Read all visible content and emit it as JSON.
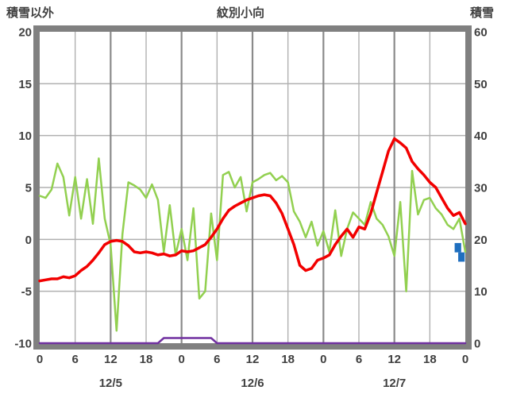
{
  "header": {
    "left_axis_title": "積雪以外",
    "title": "紋別小向",
    "right_axis_title": "積雪"
  },
  "chart_data": {
    "type": "line",
    "title": "紋別小向",
    "left_axis": {
      "label": "積雪以外",
      "min": -10,
      "max": 20,
      "tick_step": 5,
      "ticks": [
        20,
        15,
        10,
        5,
        0,
        -5,
        -10
      ]
    },
    "right_axis": {
      "label": "積雪",
      "min": 0,
      "max": 60,
      "tick_step": 10,
      "ticks": [
        60,
        50,
        40,
        30,
        20,
        10,
        0
      ]
    },
    "x_axis": {
      "hours_span": 72,
      "tick_step": 6,
      "hour_labels": [
        "0",
        "6",
        "12",
        "18",
        "0",
        "6",
        "12",
        "18",
        "0",
        "6",
        "12",
        "18",
        "0"
      ],
      "date_labels": [
        {
          "label": "12/5",
          "hour": 12
        },
        {
          "label": "12/6",
          "hour": 36
        },
        {
          "label": "12/7",
          "hour": 60
        }
      ]
    },
    "colors": {
      "frame": "#808080",
      "grid_minor": "#b0b0b0",
      "grid_major": "#8a8a8a",
      "text": "#404040",
      "plot_bg": "#ffffff"
    },
    "series": [
      {
        "name": "green-line",
        "color": "#92d050",
        "width": 2.5,
        "axis": "left",
        "values": [
          4.2,
          4.0,
          4.8,
          7.3,
          6.0,
          2.3,
          6.0,
          2.0,
          5.8,
          1.5,
          7.8,
          2.0,
          -0.5,
          -8.8,
          0.5,
          5.5,
          5.2,
          4.8,
          4.0,
          5.3,
          3.8,
          -1.2,
          3.3,
          -1.5,
          1.0,
          -2.0,
          3.0,
          -5.7,
          -5.0,
          2.5,
          -2.0,
          6.2,
          6.5,
          5.0,
          6.0,
          2.7,
          5.5,
          5.8,
          6.2,
          6.4,
          5.7,
          6.1,
          5.5,
          2.7,
          1.7,
          0.2,
          1.7,
          -0.6,
          0.8,
          -1.2,
          2.8,
          -1.6,
          1.0,
          2.6,
          2.0,
          1.4,
          3.6,
          2.0,
          1.4,
          0.3,
          -1.6,
          3.6,
          -5.0,
          6.6,
          2.4,
          3.8,
          4.0,
          3.0,
          2.4,
          1.4,
          1.0,
          2.0,
          -1.2
        ]
      },
      {
        "name": "red-line",
        "color": "#f20000",
        "width": 3.5,
        "axis": "left",
        "values": [
          -4.0,
          -3.9,
          -3.8,
          -3.8,
          -3.6,
          -3.7,
          -3.5,
          -3.0,
          -2.6,
          -2.0,
          -1.3,
          -0.5,
          -0.2,
          -0.1,
          -0.2,
          -0.6,
          -1.2,
          -1.3,
          -1.2,
          -1.3,
          -1.5,
          -1.4,
          -1.6,
          -1.5,
          -1.1,
          -1.2,
          -1.1,
          -0.8,
          -0.5,
          0.2,
          1.0,
          2.0,
          2.8,
          3.2,
          3.5,
          3.8,
          4.0,
          4.2,
          4.3,
          4.2,
          3.5,
          2.5,
          1.0,
          -0.5,
          -2.5,
          -3.0,
          -2.8,
          -2.0,
          -1.8,
          -1.5,
          -0.5,
          0.3,
          1.0,
          0.2,
          1.2,
          1.0,
          2.5,
          4.5,
          6.5,
          8.5,
          9.7,
          9.3,
          8.8,
          7.5,
          6.8,
          6.2,
          5.5,
          5.0,
          4.0,
          3.0,
          2.3,
          2.6,
          1.5
        ]
      },
      {
        "name": "purple-line",
        "color": "#7030a0",
        "width": 2.5,
        "axis": "right",
        "values": [
          0,
          0,
          0,
          0,
          0,
          0,
          0,
          0,
          0,
          0,
          0,
          0,
          0,
          0,
          0,
          0,
          0,
          0,
          0,
          0,
          0,
          1,
          1,
          1,
          1,
          1,
          1,
          1,
          1,
          1,
          0,
          0,
          0,
          0,
          0,
          0,
          0,
          0,
          0,
          0,
          0,
          0,
          0,
          0,
          0,
          0,
          0,
          0,
          0,
          0,
          0,
          0,
          0,
          0,
          0,
          0,
          0,
          0,
          0,
          0,
          0,
          0,
          0,
          0,
          0,
          0,
          0,
          0,
          0,
          0,
          0,
          0,
          0
        ]
      }
    ],
    "bars": [
      {
        "name": "blue-bar-upper",
        "color": "#1f6fbf",
        "axis": "left",
        "hour_start": 70.2,
        "hour_end": 71.3,
        "top": -0.35,
        "bottom": -1.25
      },
      {
        "name": "blue-bar-lower",
        "color": "#1f6fbf",
        "axis": "left",
        "hour_start": 70.8,
        "hour_end": 71.9,
        "top": -1.25,
        "bottom": -2.15
      }
    ]
  }
}
